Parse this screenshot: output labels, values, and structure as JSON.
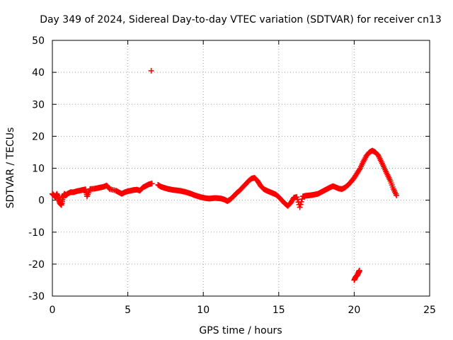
{
  "chart_data": {
    "type": "scatter",
    "title": "Day 349 of 2024, Sidereal Day-to-day VTEC variation (SDTVAR) for receiver cn13",
    "xlabel": "GPS time / hours",
    "ylabel": "SDTVAR / TECUs",
    "xlim": [
      0,
      25
    ],
    "ylim": [
      -30,
      50
    ],
    "xticks": [
      0,
      5,
      10,
      15,
      20,
      25
    ],
    "yticks": [
      -30,
      -20,
      -10,
      0,
      10,
      20,
      30,
      40,
      50
    ],
    "grid": true,
    "legend": "none",
    "series": [
      {
        "name": "SDTVAR",
        "color": "#ff0000",
        "marker": "+",
        "points": [
          [
            0.0,
            2
          ],
          [
            0.1,
            1.5
          ],
          [
            0.2,
            1
          ],
          [
            0.3,
            2
          ],
          [
            0.4,
            0.5
          ],
          [
            0.5,
            -1
          ],
          [
            0.6,
            -1.5
          ],
          [
            0.7,
            0.8
          ],
          [
            0.8,
            2
          ],
          [
            0.9,
            1.5
          ],
          [
            1.0,
            2
          ],
          [
            1.2,
            2.5
          ],
          [
            1.4,
            2.5
          ],
          [
            1.6,
            2.8
          ],
          [
            1.8,
            3
          ],
          [
            2.0,
            3.2
          ],
          [
            2.2,
            3.4
          ],
          [
            2.3,
            1.2
          ],
          [
            2.5,
            3.5
          ],
          [
            2.8,
            3.6
          ],
          [
            3.0,
            3.8
          ],
          [
            3.2,
            4
          ],
          [
            3.4,
            4.2
          ],
          [
            3.6,
            4.6
          ],
          [
            3.8,
            3.5
          ],
          [
            4.2,
            3
          ],
          [
            4.4,
            2.5
          ],
          [
            4.6,
            2
          ],
          [
            4.8,
            2.5
          ],
          [
            5.0,
            2.8
          ],
          [
            5.2,
            3
          ],
          [
            5.4,
            3.2
          ],
          [
            5.6,
            3.3
          ],
          [
            5.8,
            3
          ],
          [
            6.0,
            4
          ],
          [
            6.2,
            4.5
          ],
          [
            6.4,
            5
          ],
          [
            6.6,
            5.2
          ],
          [
            6.55,
            40.5
          ],
          [
            7.0,
            4.8
          ],
          [
            7.2,
            4.2
          ],
          [
            7.4,
            3.9
          ],
          [
            7.6,
            3.6
          ],
          [
            7.8,
            3.4
          ],
          [
            8.0,
            3.2
          ],
          [
            8.2,
            3.1
          ],
          [
            8.4,
            3
          ],
          [
            8.6,
            2.8
          ],
          [
            8.8,
            2.6
          ],
          [
            9.0,
            2.3
          ],
          [
            9.2,
            2
          ],
          [
            9.4,
            1.6
          ],
          [
            9.6,
            1.3
          ],
          [
            9.8,
            1
          ],
          [
            10.0,
            0.8
          ],
          [
            10.2,
            0.6
          ],
          [
            10.4,
            0.5
          ],
          [
            10.6,
            0.6
          ],
          [
            10.8,
            0.7
          ],
          [
            11.0,
            0.6
          ],
          [
            11.2,
            0.5
          ],
          [
            11.4,
            0.2
          ],
          [
            11.6,
            -0.3
          ],
          [
            11.8,
            0.3
          ],
          [
            12.0,
            1.2
          ],
          [
            12.2,
            2.2
          ],
          [
            12.4,
            3
          ],
          [
            12.6,
            4
          ],
          [
            12.8,
            5
          ],
          [
            13.0,
            6
          ],
          [
            13.2,
            6.8
          ],
          [
            13.4,
            7
          ],
          [
            13.6,
            6
          ],
          [
            13.8,
            4.5
          ],
          [
            14.0,
            3.5
          ],
          [
            14.2,
            3
          ],
          [
            14.4,
            2.6
          ],
          [
            14.6,
            2.2
          ],
          [
            14.8,
            1.8
          ],
          [
            15.0,
            1
          ],
          [
            15.2,
            0
          ],
          [
            15.4,
            -1
          ],
          [
            15.6,
            -1.8
          ],
          [
            15.8,
            -0.8
          ],
          [
            16.0,
            0.8
          ],
          [
            16.2,
            1
          ],
          [
            16.4,
            -2.2
          ],
          [
            16.6,
            1.2
          ],
          [
            16.8,
            1.4
          ],
          [
            17.0,
            1.5
          ],
          [
            17.2,
            1.6
          ],
          [
            17.4,
            1.8
          ],
          [
            17.6,
            2
          ],
          [
            17.8,
            2.5
          ],
          [
            18.0,
            3
          ],
          [
            18.2,
            3.5
          ],
          [
            18.4,
            4
          ],
          [
            18.6,
            4.4
          ],
          [
            18.8,
            4
          ],
          [
            19.0,
            3.6
          ],
          [
            19.2,
            3.5
          ],
          [
            19.4,
            4
          ],
          [
            19.6,
            4.8
          ],
          [
            19.8,
            5.8
          ],
          [
            20.0,
            7
          ],
          [
            20.2,
            8.5
          ],
          [
            20.4,
            10
          ],
          [
            20.6,
            12
          ],
          [
            20.8,
            13.8
          ],
          [
            21.0,
            15
          ],
          [
            21.2,
            15.5
          ],
          [
            21.4,
            15
          ],
          [
            21.6,
            14
          ],
          [
            21.8,
            12
          ],
          [
            22.0,
            10
          ],
          [
            22.2,
            8
          ],
          [
            22.4,
            6
          ],
          [
            22.6,
            3.5
          ],
          [
            22.8,
            1.5
          ],
          [
            20.0,
            -25
          ],
          [
            20.1,
            -24
          ],
          [
            20.2,
            -23.5
          ],
          [
            20.3,
            -22.5
          ],
          [
            20.35,
            -22
          ]
        ]
      }
    ]
  }
}
